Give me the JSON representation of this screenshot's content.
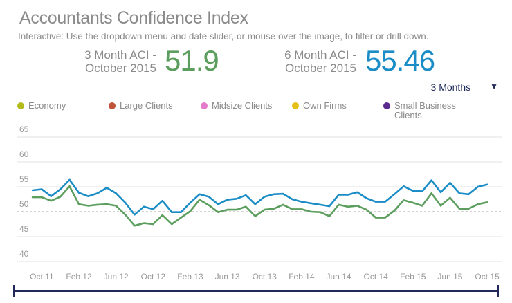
{
  "header": {
    "title": "Accountants Confidence Index",
    "subtitle": "Interactive: Use the dropdown menu and date slider, or mouse over the image, to filter or drill down."
  },
  "kpis": [
    {
      "label_line1": "3 Month ACI -",
      "label_line2": "October 2015",
      "value": "51.9",
      "color": "#5b9e5d"
    },
    {
      "label_line1": "6 Month ACI -",
      "label_line2": "October 2015",
      "value": "55.46",
      "color": "#1a8cc6"
    }
  ],
  "dropdown": {
    "selected": "3 Months",
    "arrow": "▼"
  },
  "legend": [
    {
      "label": "Economy",
      "color": "#b3ba1c"
    },
    {
      "label": "Large Clients",
      "color": "#c0533a"
    },
    {
      "label": "Midsize Clients",
      "color": "#e47ccb"
    },
    {
      "label": "Own Firms",
      "color": "#e5c01a"
    },
    {
      "label": "Small Business Clients",
      "color": "#5b2a8e"
    }
  ],
  "chart_data": {
    "type": "line",
    "title": "Accountants Confidence Index",
    "x_start": "Sep 2011",
    "x_end": "Oct 2015",
    "x_interval": "month",
    "x_tick_labels": [
      "Oct 11",
      "Feb 12",
      "Jun 12",
      "Oct 12",
      "Feb 13",
      "Jun 13",
      "Oct 13",
      "Feb 14",
      "Jun 14",
      "Oct 14",
      "Feb 15",
      "Jun 15",
      "Oct 15"
    ],
    "y_ticks": [
      40,
      45,
      50,
      55,
      60,
      65
    ],
    "ylim": [
      40,
      65
    ],
    "reference_line": 50,
    "grid": true,
    "series": [
      {
        "name": "6 Month ACI",
        "color": "#1a8cc6",
        "values": [
          54.3,
          54.5,
          53.1,
          54.5,
          56.4,
          53.8,
          53.1,
          53.7,
          54.8,
          53.7,
          51.8,
          49.4,
          51.0,
          50.5,
          52.2,
          49.9,
          49.9,
          51.8,
          53.5,
          53.0,
          51.5,
          52.4,
          52.6,
          53.3,
          51.5,
          53.0,
          53.5,
          53.6,
          52.5,
          52.0,
          51.7,
          51.4,
          51.1,
          53.4,
          53.4,
          53.9,
          52.7,
          52.0,
          52.0,
          53.5,
          55.1,
          54.2,
          54.1,
          56.3,
          53.9,
          55.8,
          53.7,
          53.5,
          55.0,
          55.46
        ]
      },
      {
        "name": "3 Month ACI",
        "color": "#5b9e5d",
        "values": [
          52.9,
          52.9,
          52.2,
          53.0,
          55.1,
          51.5,
          51.2,
          51.4,
          51.5,
          51.2,
          49.4,
          47.2,
          47.7,
          47.5,
          49.3,
          47.5,
          48.8,
          50.1,
          52.4,
          51.3,
          49.9,
          50.4,
          50.4,
          51.0,
          49.1,
          50.4,
          50.6,
          51.4,
          50.5,
          50.5,
          50.0,
          49.9,
          49.1,
          51.4,
          51.0,
          51.2,
          50.4,
          48.8,
          48.8,
          50.2,
          52.3,
          51.8,
          51.2,
          53.7,
          51.2,
          52.8,
          50.6,
          50.6,
          51.5,
          51.9
        ]
      }
    ]
  }
}
